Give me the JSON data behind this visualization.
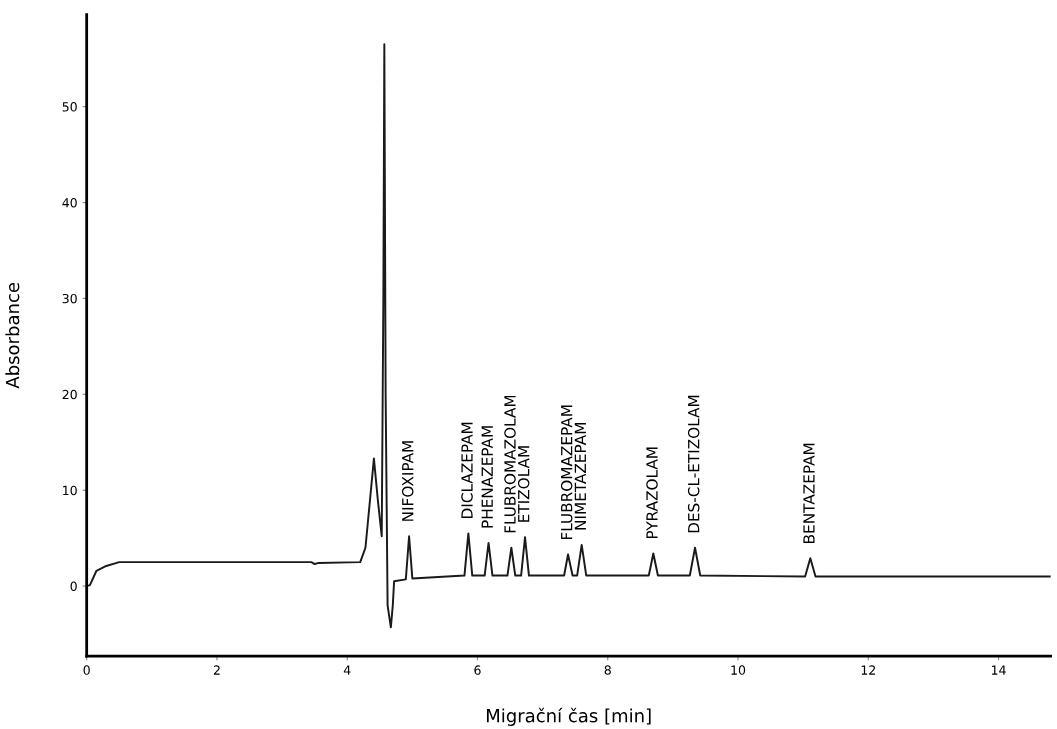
{
  "chart_data": {
    "type": "line",
    "xlabel": "Migrační čas [min]",
    "ylabel": "Absorbance",
    "xlim": [
      0,
      14.8
    ],
    "xticks": [
      0,
      2,
      4,
      6,
      8,
      10,
      12,
      14
    ],
    "ylim": [
      -7.3,
      59.6
    ],
    "yticks": [
      0,
      10,
      20,
      30,
      40,
      50
    ],
    "grid": false,
    "legend": false,
    "marker": "none",
    "line_style": "solid",
    "series": [
      {
        "color": "#1a1a1a",
        "x": [
          0,
          0.05,
          0.15,
          0.3,
          0.5,
          3.45,
          3.5,
          3.55,
          4.2,
          4.28,
          4.35,
          4.41,
          4.47,
          4.53,
          4.555,
          4.57,
          4.59,
          4.62,
          4.67,
          4.7,
          4.72,
          4.9,
          4.95,
          5,
          5.8,
          5.86,
          5.92,
          6.11,
          6.17,
          6.23,
          6.46,
          6.52,
          6.58,
          6.67,
          6.73,
          6.79,
          7.33,
          7.39,
          7.46,
          7.53,
          7.6,
          7.67,
          8.63,
          8.7,
          8.77,
          9.26,
          9.34,
          9.42,
          11.03,
          11.11,
          11.19,
          14.8
        ],
        "values": [
          0,
          0.1,
          1.6,
          2.1,
          2.5,
          2.5,
          2.3,
          2.4,
          2.5,
          4,
          9,
          13.3,
          9,
          5.2,
          30,
          56.5,
          20,
          -2,
          -4.3,
          -2,
          0.5,
          0.7,
          5.2,
          0.8,
          1.1,
          5.5,
          1.1,
          1.1,
          4.5,
          1.1,
          1.1,
          4,
          1.1,
          1.1,
          5.1,
          1.1,
          1.1,
          3.3,
          1.1,
          1.1,
          4.3,
          1.1,
          1.1,
          3.4,
          1.1,
          1.1,
          4,
          1.1,
          1,
          2.9,
          1,
          1
        ]
      }
    ],
    "annotations": [
      {
        "text": "NIFOXIPAM",
        "x": 4.95,
        "y": 5.2
      },
      {
        "text": "DICLAZEPAM",
        "x": 5.86,
        "y": 5.5
      },
      {
        "text": "PHENAZEPAM",
        "x": 6.17,
        "y": 4.5
      },
      {
        "text": "FLUBROMAZOLAM",
        "x": 6.52,
        "y": 4
      },
      {
        "text": "ETIZOLAM",
        "x": 6.73,
        "y": 5.1
      },
      {
        "text": "FLUBROMAZEPAM",
        "x": 7.39,
        "y": 3.3
      },
      {
        "text": "NIMETAZEPAM",
        "x": 7.6,
        "y": 4.3
      },
      {
        "text": "PYRAZOLAM",
        "x": 8.7,
        "y": 3.4
      },
      {
        "text": "DES-CL-ETIZOLAM",
        "x": 9.34,
        "y": 4
      },
      {
        "text": "BENTAZEPAM",
        "x": 11.11,
        "y": 2.9
      }
    ]
  }
}
